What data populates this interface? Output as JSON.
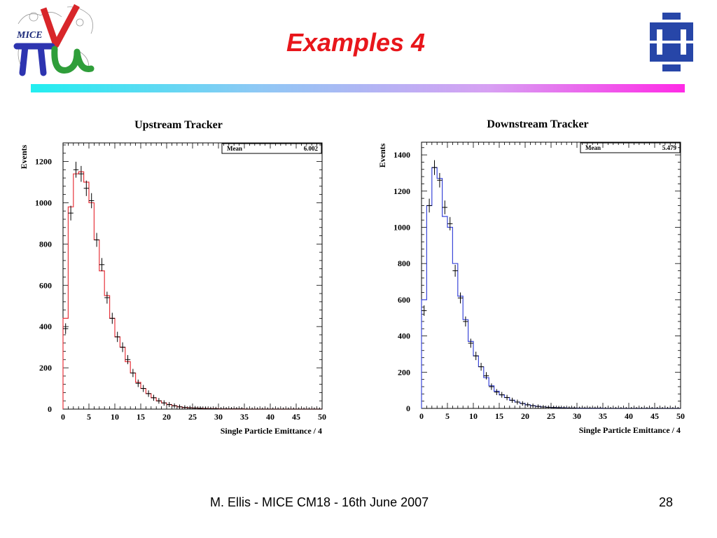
{
  "slide": {
    "title": "Examples 4",
    "footer": "M. Ellis - MICE CM18 - 16th June 2007",
    "page_number": "28",
    "logo_left_text": "MICE",
    "accent_color": "#e8161b",
    "rule_colors": [
      "#22eef0",
      "#ff2ae6"
    ]
  },
  "chart_data": [
    {
      "type": "histogram",
      "title": "Upstream Tracker",
      "xlabel": "Single Particle Emittance / 4",
      "ylabel": "Events",
      "stats_label": "Mean",
      "stats_value": "6.002",
      "xlim": [
        0,
        50
      ],
      "ylim": [
        0,
        1290
      ],
      "x_ticks": [
        0,
        5,
        10,
        15,
        20,
        25,
        30,
        35,
        40,
        45,
        50
      ],
      "y_ticks": [
        0,
        200,
        400,
        600,
        800,
        1000,
        1200
      ],
      "bin_width": 1,
      "grid": false,
      "series": [
        {
          "kind": "histogram-line",
          "color": "#e8343c",
          "values": [
            440,
            980,
            1140,
            1150,
            1100,
            1000,
            820,
            670,
            550,
            440,
            350,
            300,
            230,
            175,
            130,
            100,
            75,
            55,
            40,
            30,
            22,
            16,
            11,
            8,
            6,
            5,
            4,
            3,
            2,
            2,
            1,
            1,
            1,
            1,
            1,
            0,
            0,
            0,
            0,
            0,
            0,
            0,
            0,
            0,
            0,
            0,
            0,
            0,
            0,
            0
          ]
        },
        {
          "kind": "data-points",
          "color": "#000000",
          "values": [
            390,
            950,
            1160,
            1140,
            1070,
            1010,
            820,
            700,
            540,
            440,
            350,
            300,
            240,
            175,
            125,
            100,
            75,
            55,
            40,
            30,
            22,
            16,
            11,
            8,
            6,
            5,
            4,
            3,
            2,
            2,
            1,
            1,
            1,
            1,
            1,
            0,
            0,
            0,
            0,
            0,
            0,
            0,
            0,
            0,
            0,
            0,
            0,
            0,
            0,
            0
          ]
        }
      ]
    },
    {
      "type": "histogram",
      "title": "Downstream Tracker",
      "xlabel": "Single Particle Emittance / 4",
      "ylabel": "Events",
      "stats_label": "Mean",
      "stats_value": "5.479",
      "xlim": [
        0,
        50
      ],
      "ylim": [
        0,
        1470
      ],
      "x_ticks": [
        0,
        5,
        10,
        15,
        20,
        25,
        30,
        35,
        40,
        45,
        50
      ],
      "y_ticks": [
        0,
        200,
        400,
        600,
        800,
        1000,
        1200,
        1400
      ],
      "bin_width": 1,
      "grid": false,
      "series": [
        {
          "kind": "histogram-line",
          "color": "#3a46d8",
          "values": [
            600,
            1120,
            1330,
            1270,
            1060,
            1000,
            800,
            620,
            490,
            370,
            290,
            230,
            170,
            125,
            95,
            75,
            60,
            45,
            35,
            27,
            20,
            15,
            11,
            8,
            6,
            5,
            4,
            3,
            2,
            2,
            1,
            1,
            1,
            1,
            1,
            0,
            0,
            0,
            0,
            0,
            0,
            0,
            0,
            0,
            0,
            0,
            0,
            0,
            0,
            0
          ]
        },
        {
          "kind": "data-points",
          "color": "#000000",
          "values": [
            540,
            1120,
            1330,
            1260,
            1110,
            1020,
            760,
            610,
            480,
            360,
            290,
            230,
            180,
            120,
            90,
            75,
            60,
            45,
            35,
            27,
            20,
            15,
            11,
            8,
            6,
            5,
            4,
            3,
            2,
            2,
            1,
            1,
            1,
            1,
            1,
            0,
            0,
            0,
            0,
            0,
            0,
            0,
            0,
            0,
            0,
            0,
            0,
            0,
            0,
            0
          ]
        }
      ]
    }
  ]
}
